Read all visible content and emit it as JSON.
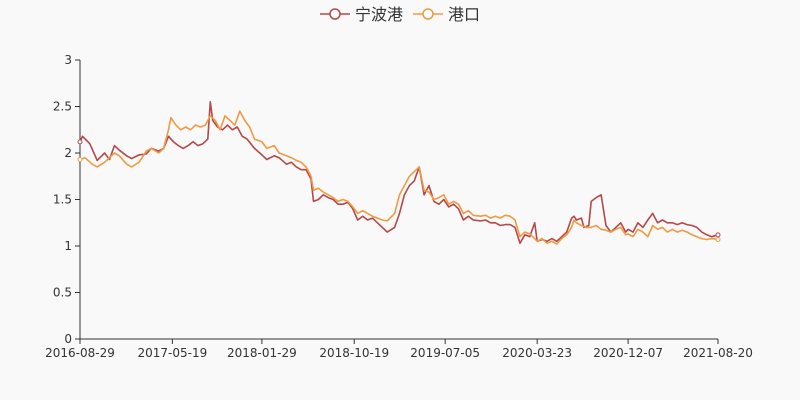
{
  "chart_data": {
    "type": "line",
    "title": "",
    "xlabel": "",
    "ylabel": "",
    "legend_position": "top-center",
    "grid": false,
    "ylim": [
      0,
      3
    ],
    "y_ticks": [
      "0",
      "0.5",
      "1",
      "1.5",
      "2",
      "2.5",
      "3"
    ],
    "x_range": [
      "2016-08-29",
      "2021-08-20"
    ],
    "x_ticks": [
      "2016-08-29",
      "2017-05-19",
      "2018-01-29",
      "2018-10-19",
      "2019-07-05",
      "2020-03-23",
      "2020-12-07",
      "2021-08-20"
    ],
    "series": [
      {
        "name": "宁波港",
        "color": "#b5484a",
        "points": [
          [
            "2016-08-29",
            2.12
          ],
          [
            "2016-09-05",
            2.18
          ],
          [
            "2016-09-26",
            2.1
          ],
          [
            "2016-10-17",
            1.92
          ],
          [
            "2016-11-07",
            2.0
          ],
          [
            "2016-11-21",
            1.93
          ],
          [
            "2016-12-05",
            2.08
          ],
          [
            "2016-12-19",
            2.03
          ],
          [
            "2017-01-09",
            1.97
          ],
          [
            "2017-01-23",
            1.94
          ],
          [
            "2017-02-13",
            1.98
          ],
          [
            "2017-03-06",
            1.99
          ],
          [
            "2017-03-20",
            2.05
          ],
          [
            "2017-04-10",
            2.02
          ],
          [
            "2017-04-24",
            2.05
          ],
          [
            "2017-05-08",
            2.18
          ],
          [
            "2017-05-22",
            2.12
          ],
          [
            "2017-06-05",
            2.08
          ],
          [
            "2017-06-19",
            2.05
          ],
          [
            "2017-07-03",
            2.08
          ],
          [
            "2017-07-17",
            2.12
          ],
          [
            "2017-07-31",
            2.08
          ],
          [
            "2017-08-14",
            2.1
          ],
          [
            "2017-08-28",
            2.15
          ],
          [
            "2017-09-04",
            2.55
          ],
          [
            "2017-09-11",
            2.35
          ],
          [
            "2017-09-25",
            2.28
          ],
          [
            "2017-10-09",
            2.25
          ],
          [
            "2017-10-23",
            2.3
          ],
          [
            "2017-11-06",
            2.25
          ],
          [
            "2017-11-20",
            2.28
          ],
          [
            "2017-12-04",
            2.18
          ],
          [
            "2017-12-18",
            2.15
          ],
          [
            "2018-01-08",
            2.05
          ],
          [
            "2018-01-29",
            1.98
          ],
          [
            "2018-02-12",
            1.93
          ],
          [
            "2018-03-05",
            1.97
          ],
          [
            "2018-03-19",
            1.95
          ],
          [
            "2018-04-09",
            1.88
          ],
          [
            "2018-04-23",
            1.9
          ],
          [
            "2018-05-07",
            1.85
          ],
          [
            "2018-05-21",
            1.82
          ],
          [
            "2018-06-04",
            1.82
          ],
          [
            "2018-06-18",
            1.72
          ],
          [
            "2018-06-25",
            1.48
          ],
          [
            "2018-07-09",
            1.5
          ],
          [
            "2018-07-23",
            1.55
          ],
          [
            "2018-08-06",
            1.52
          ],
          [
            "2018-08-20",
            1.5
          ],
          [
            "2018-09-03",
            1.45
          ],
          [
            "2018-09-17",
            1.45
          ],
          [
            "2018-10-01",
            1.47
          ],
          [
            "2018-10-15",
            1.4
          ],
          [
            "2018-10-29",
            1.28
          ],
          [
            "2018-11-12",
            1.32
          ],
          [
            "2018-11-26",
            1.28
          ],
          [
            "2018-12-10",
            1.3
          ],
          [
            "2018-12-24",
            1.25
          ],
          [
            "2019-01-07",
            1.2
          ],
          [
            "2019-01-21",
            1.15
          ],
          [
            "2019-02-11",
            1.2
          ],
          [
            "2019-02-25",
            1.35
          ],
          [
            "2019-03-11",
            1.55
          ],
          [
            "2019-03-25",
            1.65
          ],
          [
            "2019-04-08",
            1.7
          ],
          [
            "2019-04-22",
            1.85
          ],
          [
            "2019-05-06",
            1.55
          ],
          [
            "2019-05-20",
            1.65
          ],
          [
            "2019-06-03",
            1.48
          ],
          [
            "2019-06-17",
            1.45
          ],
          [
            "2019-07-01",
            1.5
          ],
          [
            "2019-07-15",
            1.42
          ],
          [
            "2019-07-29",
            1.45
          ],
          [
            "2019-08-12",
            1.4
          ],
          [
            "2019-08-26",
            1.28
          ],
          [
            "2019-09-09",
            1.32
          ],
          [
            "2019-09-23",
            1.28
          ],
          [
            "2019-10-14",
            1.27
          ],
          [
            "2019-10-28",
            1.28
          ],
          [
            "2019-11-11",
            1.25
          ],
          [
            "2019-11-25",
            1.25
          ],
          [
            "2019-12-09",
            1.22
          ],
          [
            "2019-12-23",
            1.23
          ],
          [
            "2020-01-06",
            1.23
          ],
          [
            "2020-01-20",
            1.2
          ],
          [
            "2020-02-03",
            1.03
          ],
          [
            "2020-02-17",
            1.12
          ],
          [
            "2020-03-02",
            1.1
          ],
          [
            "2020-03-16",
            1.25
          ],
          [
            "2020-03-23",
            1.05
          ],
          [
            "2020-04-06",
            1.07
          ],
          [
            "2020-04-20",
            1.05
          ],
          [
            "2020-05-04",
            1.08
          ],
          [
            "2020-05-18",
            1.05
          ],
          [
            "2020-06-01",
            1.1
          ],
          [
            "2020-06-15",
            1.15
          ],
          [
            "2020-06-29",
            1.3
          ],
          [
            "2020-07-06",
            1.32
          ],
          [
            "2020-07-13",
            1.28
          ],
          [
            "2020-07-27",
            1.3
          ],
          [
            "2020-08-03",
            1.2
          ],
          [
            "2020-08-17",
            1.22
          ],
          [
            "2020-08-24",
            1.48
          ],
          [
            "2020-09-07",
            1.52
          ],
          [
            "2020-09-21",
            1.55
          ],
          [
            "2020-10-05",
            1.22
          ],
          [
            "2020-10-19",
            1.15
          ],
          [
            "2020-11-02",
            1.2
          ],
          [
            "2020-11-16",
            1.25
          ],
          [
            "2020-11-30",
            1.15
          ],
          [
            "2020-12-07",
            1.18
          ],
          [
            "2020-12-21",
            1.15
          ],
          [
            "2021-01-04",
            1.25
          ],
          [
            "2021-01-18",
            1.2
          ],
          [
            "2021-02-01",
            1.28
          ],
          [
            "2021-02-15",
            1.35
          ],
          [
            "2021-03-01",
            1.25
          ],
          [
            "2021-03-15",
            1.28
          ],
          [
            "2021-03-29",
            1.25
          ],
          [
            "2021-04-12",
            1.25
          ],
          [
            "2021-04-26",
            1.23
          ],
          [
            "2021-05-10",
            1.25
          ],
          [
            "2021-05-24",
            1.23
          ],
          [
            "2021-06-07",
            1.22
          ],
          [
            "2021-06-21",
            1.2
          ],
          [
            "2021-07-05",
            1.15
          ],
          [
            "2021-07-19",
            1.12
          ],
          [
            "2021-08-02",
            1.1
          ],
          [
            "2021-08-20",
            1.12
          ]
        ]
      },
      {
        "name": "港口",
        "color": "#f09a42",
        "points": [
          [
            "2016-08-29",
            1.93
          ],
          [
            "2016-09-12",
            1.95
          ],
          [
            "2016-10-03",
            1.88
          ],
          [
            "2016-10-17",
            1.85
          ],
          [
            "2016-11-07",
            1.9
          ],
          [
            "2016-11-21",
            1.95
          ],
          [
            "2016-12-05",
            2.0
          ],
          [
            "2016-12-19",
            1.97
          ],
          [
            "2017-01-09",
            1.88
          ],
          [
            "2017-01-23",
            1.85
          ],
          [
            "2017-02-13",
            1.9
          ],
          [
            "2017-03-06",
            2.02
          ],
          [
            "2017-03-20",
            2.05
          ],
          [
            "2017-04-10",
            2.0
          ],
          [
            "2017-04-24",
            2.05
          ],
          [
            "2017-05-08",
            2.25
          ],
          [
            "2017-05-15",
            2.38
          ],
          [
            "2017-05-29",
            2.3
          ],
          [
            "2017-06-12",
            2.25
          ],
          [
            "2017-06-26",
            2.28
          ],
          [
            "2017-07-10",
            2.25
          ],
          [
            "2017-07-24",
            2.3
          ],
          [
            "2017-08-07",
            2.28
          ],
          [
            "2017-08-21",
            2.3
          ],
          [
            "2017-09-04",
            2.4
          ],
          [
            "2017-09-18",
            2.35
          ],
          [
            "2017-10-02",
            2.25
          ],
          [
            "2017-10-16",
            2.4
          ],
          [
            "2017-10-30",
            2.35
          ],
          [
            "2017-11-13",
            2.3
          ],
          [
            "2017-11-27",
            2.45
          ],
          [
            "2017-12-11",
            2.35
          ],
          [
            "2017-12-25",
            2.28
          ],
          [
            "2018-01-08",
            2.15
          ],
          [
            "2018-01-29",
            2.12
          ],
          [
            "2018-02-12",
            2.05
          ],
          [
            "2018-03-05",
            2.08
          ],
          [
            "2018-03-19",
            2.0
          ],
          [
            "2018-04-09",
            1.97
          ],
          [
            "2018-04-23",
            1.95
          ],
          [
            "2018-05-07",
            1.92
          ],
          [
            "2018-05-21",
            1.9
          ],
          [
            "2018-06-04",
            1.85
          ],
          [
            "2018-06-18",
            1.75
          ],
          [
            "2018-06-25",
            1.6
          ],
          [
            "2018-07-09",
            1.62
          ],
          [
            "2018-07-23",
            1.58
          ],
          [
            "2018-08-06",
            1.55
          ],
          [
            "2018-08-20",
            1.52
          ],
          [
            "2018-09-03",
            1.48
          ],
          [
            "2018-09-17",
            1.5
          ],
          [
            "2018-10-01",
            1.48
          ],
          [
            "2018-10-15",
            1.42
          ],
          [
            "2018-10-29",
            1.35
          ],
          [
            "2018-11-12",
            1.38
          ],
          [
            "2018-11-26",
            1.35
          ],
          [
            "2018-12-10",
            1.32
          ],
          [
            "2018-12-24",
            1.3
          ],
          [
            "2019-01-07",
            1.28
          ],
          [
            "2019-01-21",
            1.27
          ],
          [
            "2019-02-11",
            1.35
          ],
          [
            "2019-02-25",
            1.55
          ],
          [
            "2019-03-11",
            1.65
          ],
          [
            "2019-03-25",
            1.75
          ],
          [
            "2019-04-08",
            1.8
          ],
          [
            "2019-04-22",
            1.85
          ],
          [
            "2019-05-06",
            1.6
          ],
          [
            "2019-05-20",
            1.58
          ],
          [
            "2019-06-03",
            1.5
          ],
          [
            "2019-06-17",
            1.52
          ],
          [
            "2019-07-01",
            1.55
          ],
          [
            "2019-07-15",
            1.45
          ],
          [
            "2019-07-29",
            1.48
          ],
          [
            "2019-08-12",
            1.45
          ],
          [
            "2019-08-26",
            1.35
          ],
          [
            "2019-09-09",
            1.38
          ],
          [
            "2019-09-23",
            1.33
          ],
          [
            "2019-10-14",
            1.32
          ],
          [
            "2019-10-28",
            1.33
          ],
          [
            "2019-11-11",
            1.3
          ],
          [
            "2019-11-25",
            1.32
          ],
          [
            "2019-12-09",
            1.3
          ],
          [
            "2019-12-23",
            1.33
          ],
          [
            "2020-01-06",
            1.32
          ],
          [
            "2020-01-20",
            1.28
          ],
          [
            "2020-02-03",
            1.1
          ],
          [
            "2020-02-17",
            1.15
          ],
          [
            "2020-03-02",
            1.13
          ],
          [
            "2020-03-16",
            1.08
          ],
          [
            "2020-03-23",
            1.05
          ],
          [
            "2020-04-06",
            1.08
          ],
          [
            "2020-04-20",
            1.03
          ],
          [
            "2020-05-04",
            1.05
          ],
          [
            "2020-05-18",
            1.02
          ],
          [
            "2020-06-01",
            1.08
          ],
          [
            "2020-06-15",
            1.12
          ],
          [
            "2020-06-29",
            1.2
          ],
          [
            "2020-07-06",
            1.28
          ],
          [
            "2020-07-13",
            1.25
          ],
          [
            "2020-07-27",
            1.22
          ],
          [
            "2020-08-10",
            1.2
          ],
          [
            "2020-08-24",
            1.2
          ],
          [
            "2020-09-07",
            1.22
          ],
          [
            "2020-09-21",
            1.18
          ],
          [
            "2020-10-05",
            1.17
          ],
          [
            "2020-10-19",
            1.15
          ],
          [
            "2020-11-02",
            1.18
          ],
          [
            "2020-11-16",
            1.2
          ],
          [
            "2020-11-30",
            1.12
          ],
          [
            "2020-12-07",
            1.13
          ],
          [
            "2020-12-21",
            1.1
          ],
          [
            "2021-01-04",
            1.18
          ],
          [
            "2021-01-18",
            1.15
          ],
          [
            "2021-02-01",
            1.1
          ],
          [
            "2021-02-15",
            1.22
          ],
          [
            "2021-03-01",
            1.18
          ],
          [
            "2021-03-15",
            1.2
          ],
          [
            "2021-03-29",
            1.15
          ],
          [
            "2021-04-12",
            1.18
          ],
          [
            "2021-04-26",
            1.15
          ],
          [
            "2021-05-10",
            1.17
          ],
          [
            "2021-05-24",
            1.15
          ],
          [
            "2021-06-07",
            1.12
          ],
          [
            "2021-06-21",
            1.1
          ],
          [
            "2021-07-05",
            1.08
          ],
          [
            "2021-07-19",
            1.07
          ],
          [
            "2021-08-02",
            1.08
          ],
          [
            "2021-08-20",
            1.07
          ]
        ]
      }
    ]
  }
}
